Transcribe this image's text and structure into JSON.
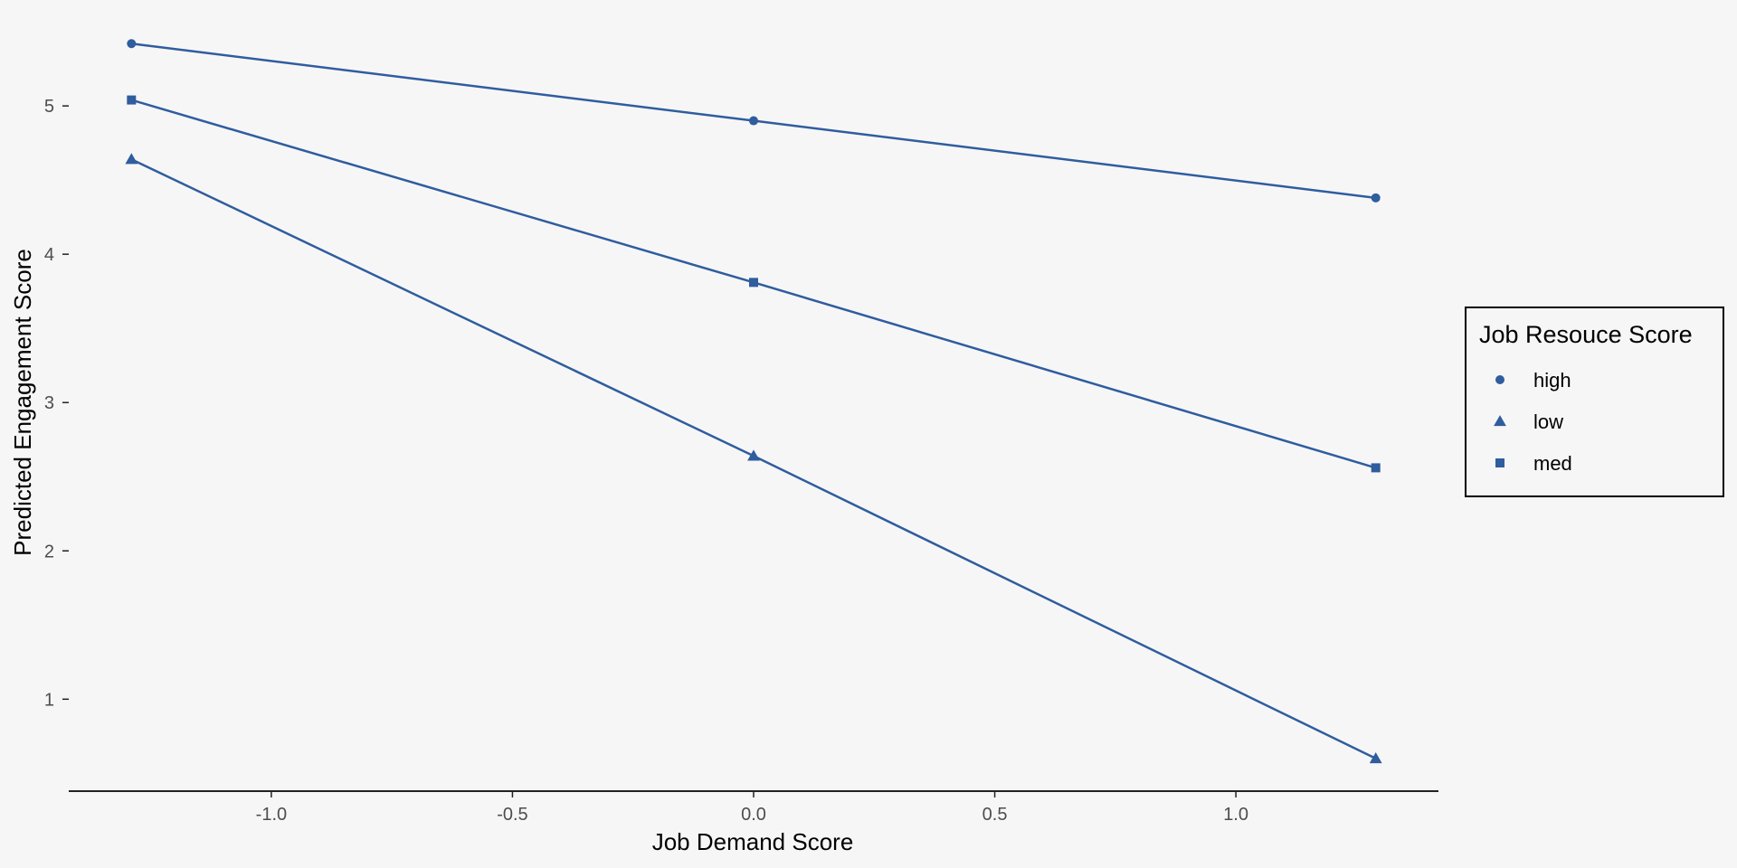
{
  "chart_data": {
    "type": "line",
    "xlabel": "Job Demand Score",
    "ylabel": "Predicted Engagement Score",
    "x": [
      -1.29,
      0.0,
      1.29
    ],
    "xlim": [
      -1.42,
      1.42
    ],
    "ylim": [
      0.38,
      5.58
    ],
    "xticks": [
      -1.0,
      -0.5,
      0.0,
      0.5,
      1.0
    ],
    "xtick_labels": [
      "-1.0",
      "-0.5",
      "0.0",
      "0.5",
      "1.0"
    ],
    "yticks": [
      1,
      2,
      3,
      4,
      5
    ],
    "ytick_labels": [
      "1",
      "2",
      "3",
      "4",
      "5"
    ],
    "grid": false,
    "legend": {
      "title": "Job Resouce Score",
      "placement": "right"
    },
    "series": [
      {
        "name": "high",
        "marker": "circle",
        "values": [
          5.42,
          4.9,
          4.38
        ]
      },
      {
        "name": "low",
        "marker": "triangle",
        "values": [
          4.64,
          2.64,
          0.6
        ]
      },
      {
        "name": "med",
        "marker": "square",
        "values": [
          5.04,
          3.81,
          2.56
        ]
      }
    ],
    "colors": {
      "series": "#2f5d9e",
      "background": "#f7f6f7",
      "axis": "#222222"
    }
  }
}
